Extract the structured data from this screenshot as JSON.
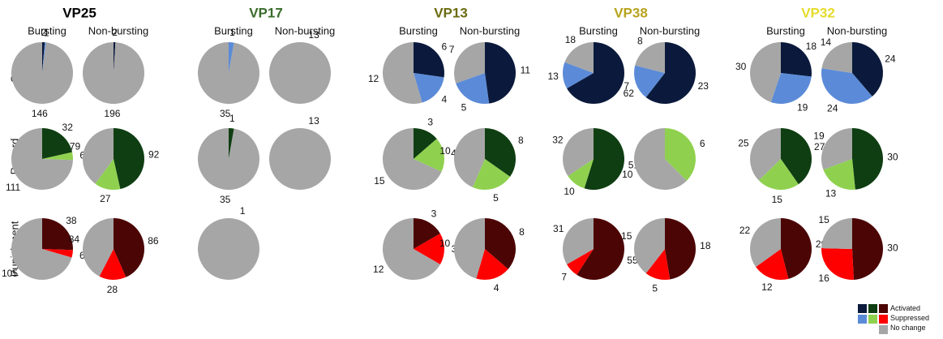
{
  "chart_data": {
    "type": "pie",
    "row_labels": [
      "Cue",
      "Reward",
      "Punishment"
    ],
    "column_labels": [
      "Bursting",
      "Non-bursting"
    ],
    "legend": [
      "Activated",
      "Suppressed",
      "No change"
    ],
    "panels": [
      {
        "title": "VP25",
        "title_color": "#000000",
        "colors": {
          "Cue": [
            "#0b1a3c",
            "#5b8bd8",
            "#a6a6a6"
          ],
          "Reward": [
            "#0f3e12",
            "#8fd14f",
            "#a6a6a6"
          ],
          "Punishment": [
            "#4c0505",
            "#ff0000",
            "#a6a6a6"
          ]
        },
        "pies": {
          "Cue": {
            "Bursting": [
              2,
              1,
              146
            ],
            "Non-bursting": [
              2,
              0,
              196
            ]
          },
          "Reward": {
            "Bursting": [
              32,
              6,
              111
            ],
            "Non-bursting": [
              92,
              27,
              79
            ]
          },
          "Punishment": {
            "Bursting": [
              38,
              6,
              105
            ],
            "Non-bursting": [
              86,
              28,
              84
            ]
          }
        }
      },
      {
        "title": "VP17",
        "title_color": "#3a6b2a",
        "colors": {
          "Cue": [
            "#0b1a3c",
            "#5b8bd8",
            "#a6a6a6"
          ],
          "Reward": [
            "#0f3e12",
            "#8fd14f",
            "#a6a6a6"
          ],
          "Punishment": [
            "#4c0505",
            "#ff0000",
            "#a6a6a6"
          ]
        },
        "pies": {
          "Cue": {
            "Bursting": [
              0,
              1,
              35
            ],
            "Non-bursting": [
              0,
              0,
              13
            ]
          },
          "Reward": {
            "Bursting": [
              1,
              0,
              35
            ],
            "Non-bursting": [
              0,
              0,
              13
            ]
          },
          "Punishment": {
            "Bursting": [
              0,
              0,
              1
            ],
            "Non-bursting": null
          }
        }
      },
      {
        "title": "VP13",
        "title_color": "#6b6b12",
        "colors": {
          "Cue": [
            "#0b1a3c",
            "#5b8bd8",
            "#a6a6a6"
          ],
          "Reward": [
            "#0f3e12",
            "#8fd14f",
            "#a6a6a6"
          ],
          "Punishment": [
            "#4c0505",
            "#ff0000",
            "#a6a6a6"
          ]
        },
        "pies": {
          "Cue": {
            "Bursting": [
              6,
              4,
              12
            ],
            "Non-bursting": [
              11,
              5,
              7
            ]
          },
          "Reward": {
            "Bursting": [
              3,
              4,
              15
            ],
            "Non-bursting": [
              8,
              5,
              10
            ]
          },
          "Punishment": {
            "Bursting": [
              3,
              3,
              12
            ],
            "Non-bursting": [
              8,
              4,
              10
            ]
          }
        }
      },
      {
        "title": "VP38",
        "title_color": "#b7a31c",
        "colors": {
          "Cue": [
            "#0b1a3c",
            "#5b8bd8",
            "#a6a6a6"
          ],
          "Reward": [
            "#0f3e12",
            "#8fd14f",
            "#a6a6a6"
          ],
          "Punishment": [
            "#4c0505",
            "#ff0000",
            "#a6a6a6"
          ]
        },
        "pies": {
          "Cue": {
            "Bursting": [
              62,
              13,
              18
            ],
            "Non-bursting": [
              23,
              7,
              8
            ]
          },
          "Reward": {
            "Bursting": [
              51,
              10,
              32
            ],
            "Non-bursting": [
              0,
              6,
              10
            ]
          },
          "Punishment": {
            "Bursting": [
              55,
              7,
              31
            ],
            "Non-bursting": [
              18,
              5,
              15
            ]
          }
        }
      },
      {
        "title": "VP32",
        "title_color": "#e4dc2a",
        "colors": {
          "Cue": [
            "#0b1a3c",
            "#5b8bd8",
            "#a6a6a6"
          ],
          "Reward": [
            "#0f3e12",
            "#8fd14f",
            "#a6a6a6"
          ],
          "Punishment": [
            "#4c0505",
            "#ff0000",
            "#a6a6a6"
          ]
        },
        "pies": {
          "Cue": {
            "Bursting": [
              18,
              19,
              30
            ],
            "Non-bursting": [
              24,
              24,
              14
            ]
          },
          "Reward": {
            "Bursting": [
              27,
              15,
              25
            ],
            "Non-bursting": [
              30,
              13,
              19
            ]
          },
          "Punishment": {
            "Bursting": [
              29,
              12,
              22
            ],
            "Non-bursting": [
              30,
              16,
              15
            ]
          }
        }
      }
    ]
  },
  "legend_colors": {
    "Activated": [
      "#0b1a3c",
      "#0f3e12",
      "#4c0505"
    ],
    "Suppressed": [
      "#5b8bd8",
      "#8fd14f",
      "#ff0000"
    ],
    "No change": [
      "#a6a6a6"
    ]
  }
}
